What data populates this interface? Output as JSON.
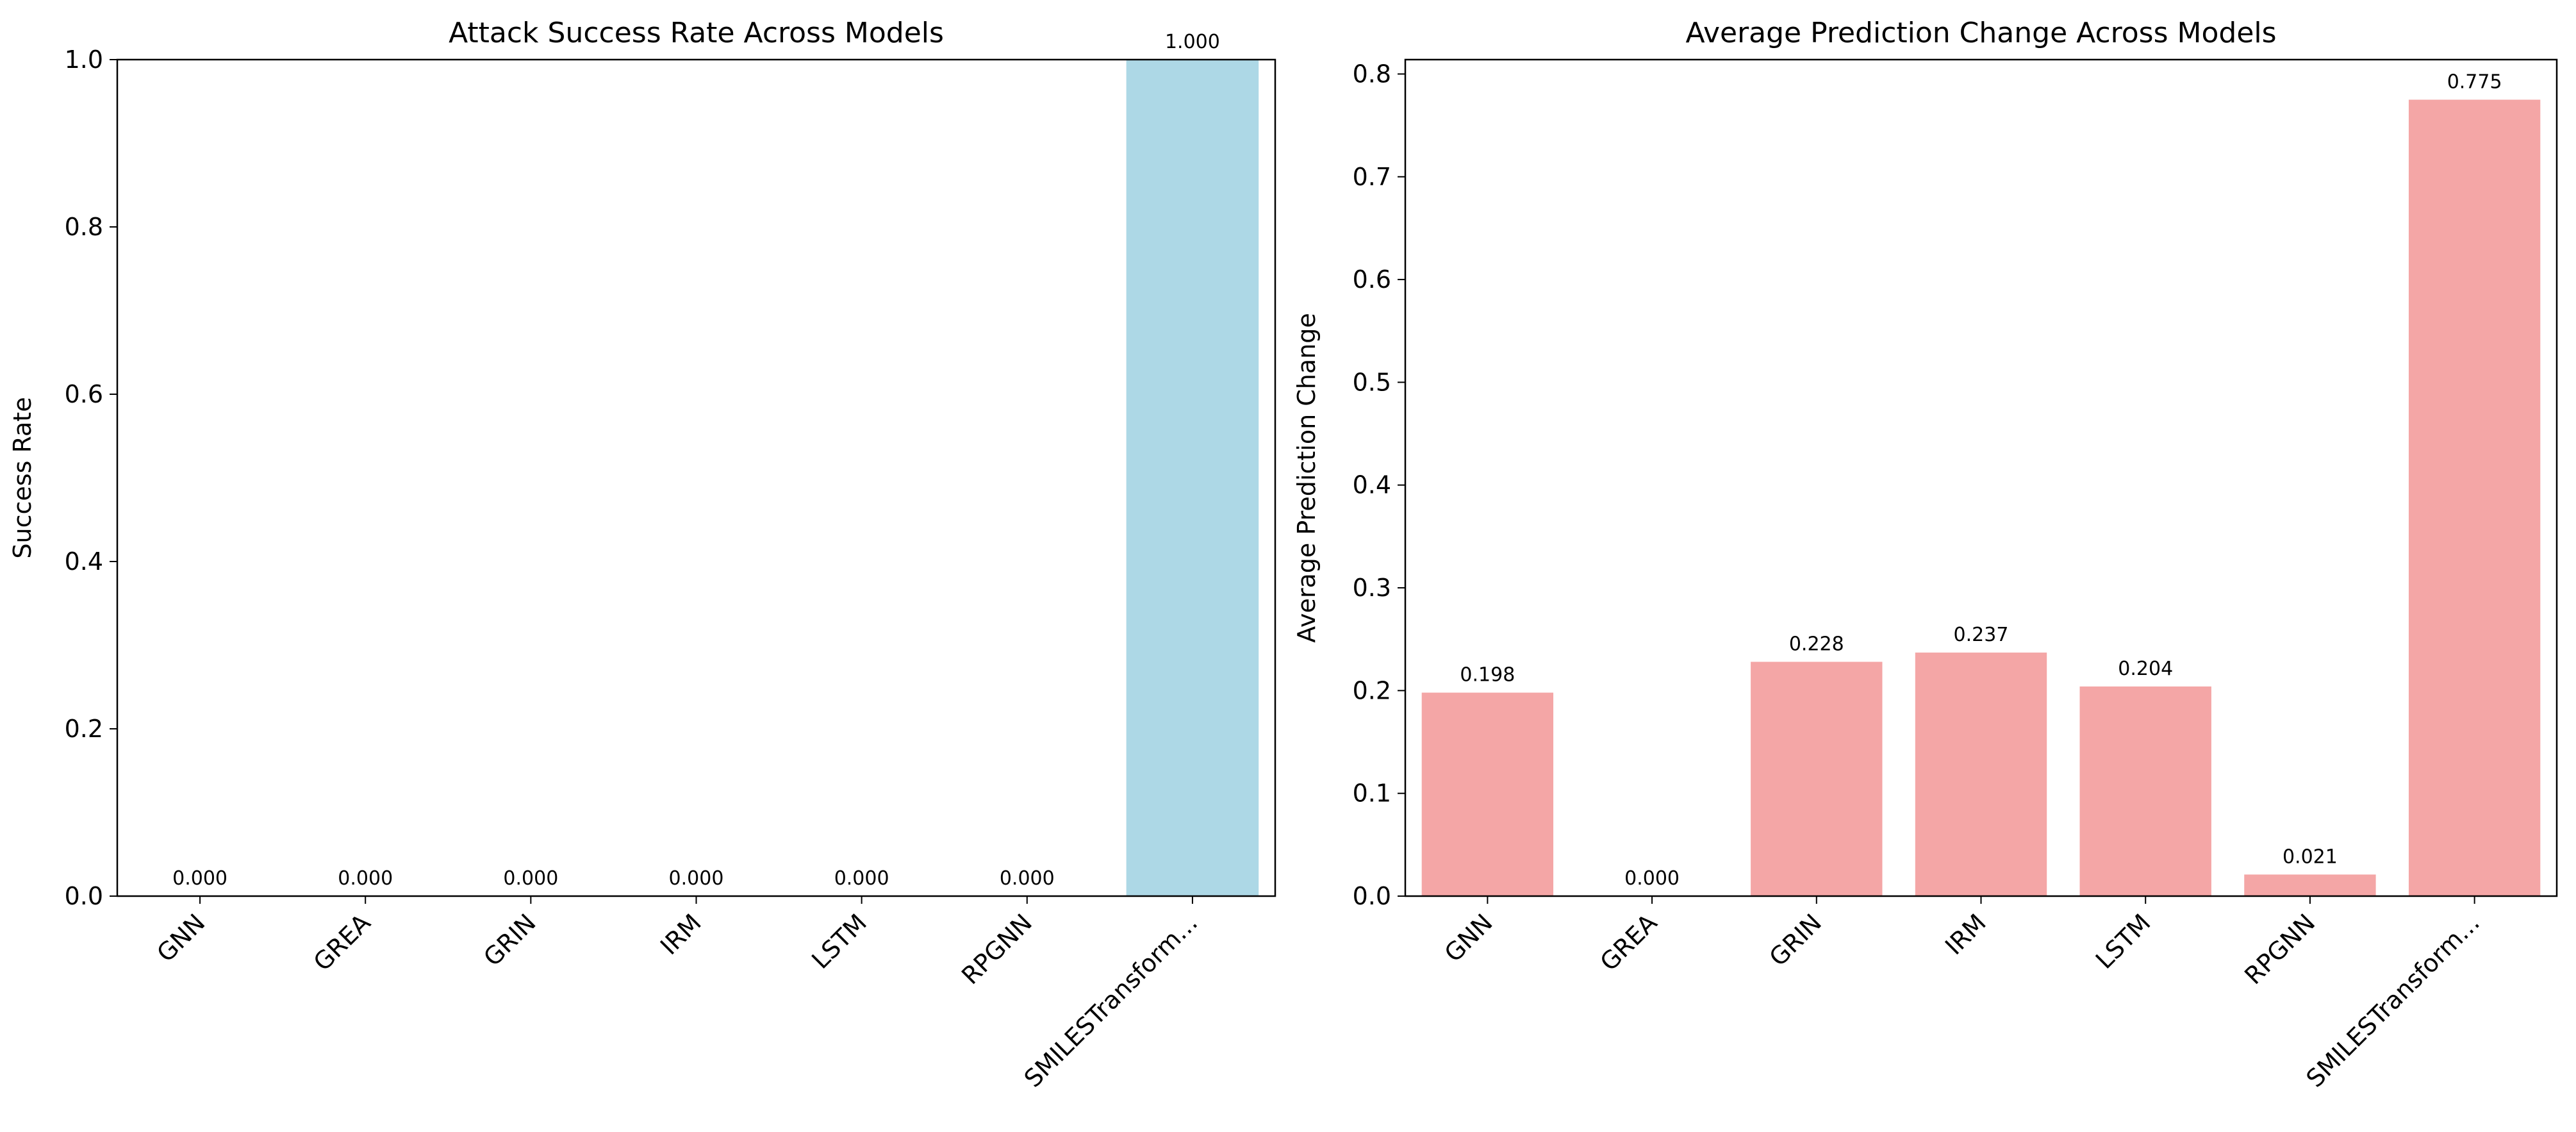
{
  "colors": {
    "left_bar": "#add8e6",
    "right_bar": "#f4a6a6",
    "axis": "#000000"
  },
  "chart_data": [
    {
      "type": "bar",
      "title": "Attack Success Rate Across Models",
      "xlabel": "",
      "ylabel": "Success Rate",
      "ylim": [
        0,
        1.0
      ],
      "yticks": [
        0.0,
        0.2,
        0.4,
        0.6,
        0.8,
        1.0
      ],
      "ytick_labels": [
        "0.0",
        "0.2",
        "0.4",
        "0.6",
        "0.8",
        "1.0"
      ],
      "grid": false,
      "categories": [
        "GNN",
        "GREA",
        "GRIN",
        "IRM",
        "LSTM",
        "RPGNN",
        "SMILESTransform..."
      ],
      "values": [
        0.0,
        0.0,
        0.0,
        0.0,
        0.0,
        0.0,
        1.0
      ],
      "value_labels": [
        "0.000",
        "0.000",
        "0.000",
        "0.000",
        "0.000",
        "0.000",
        "1.000"
      ]
    },
    {
      "type": "bar",
      "title": "Average Prediction Change Across Models",
      "xlabel": "",
      "ylabel": "Average Prediction Change",
      "ylim": [
        0,
        0.814
      ],
      "yticks": [
        0.0,
        0.1,
        0.2,
        0.3,
        0.4,
        0.5,
        0.6,
        0.7,
        0.8
      ],
      "ytick_labels": [
        "0.0",
        "0.1",
        "0.2",
        "0.3",
        "0.4",
        "0.5",
        "0.6",
        "0.7",
        "0.8"
      ],
      "grid": false,
      "categories": [
        "GNN",
        "GREA",
        "GRIN",
        "IRM",
        "LSTM",
        "RPGNN",
        "SMILESTransform..."
      ],
      "values": [
        0.198,
        0.0,
        0.228,
        0.237,
        0.204,
        0.021,
        0.775
      ],
      "value_labels": [
        "0.198",
        "0.000",
        "0.228",
        "0.237",
        "0.204",
        "0.021",
        "0.775"
      ]
    }
  ]
}
